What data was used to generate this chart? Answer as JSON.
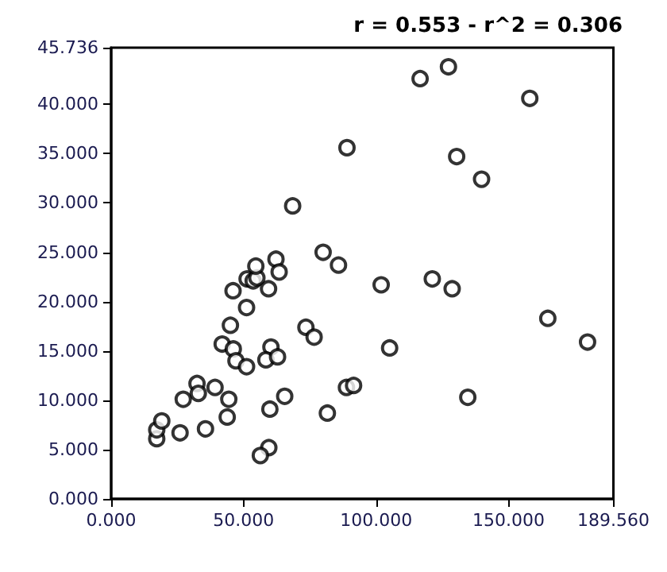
{
  "chart_data": {
    "type": "scatter",
    "annotations": [
      "r = 0.553 - r^2 = 0.306"
    ],
    "x": [
      17.2,
      17.2,
      19.1,
      26.0,
      27.2,
      32.4,
      32.9,
      35.6,
      39.2,
      43.8,
      44.4,
      41.9,
      45.0,
      46.1,
      47.1,
      51.1,
      51.1,
      46.0,
      51.3,
      53.6,
      55.0,
      59.4,
      60.3,
      58.4,
      62.8,
      59.9,
      59.5,
      56.3,
      65.5,
      73.5,
      76.6,
      81.6,
      88.8,
      91.5,
      101.9,
      105.1,
      121.2,
      128.7,
      134.6,
      164.8,
      179.8,
      68.5,
      80.0,
      85.8,
      62.2,
      54.6,
      63.4,
      89.0,
      116.6,
      127.3,
      130.4,
      139.8,
      158.0
    ],
    "values": [
      6.1,
      7.0,
      7.9,
      6.7,
      10.1,
      11.7,
      10.7,
      7.1,
      11.3,
      8.3,
      10.1,
      15.7,
      17.6,
      15.2,
      14.0,
      13.4,
      19.4,
      21.1,
      22.3,
      22.1,
      22.4,
      21.3,
      15.4,
      14.1,
      14.4,
      9.1,
      5.2,
      4.4,
      10.4,
      17.4,
      16.4,
      8.7,
      11.3,
      11.5,
      21.7,
      15.3,
      22.3,
      21.3,
      10.3,
      18.3,
      15.9,
      29.7,
      25.0,
      23.7,
      24.3,
      23.6,
      23.0,
      35.6,
      42.6,
      43.8,
      34.7,
      32.4,
      40.6
    ],
    "color": "#000000",
    "marker": "circle",
    "xlim": [
      0,
      189.56
    ],
    "xticks": [
      {
        "value": 0,
        "label": "0.000"
      },
      {
        "value": 50,
        "label": "50.000"
      },
      {
        "value": 100,
        "label": "100.000"
      },
      {
        "value": 150,
        "label": "150.000"
      },
      {
        "value": 189.56,
        "label": "189.560"
      }
    ],
    "ylim": [
      0,
      45.736
    ],
    "yticks": [
      {
        "value": 0,
        "label": "0.000"
      },
      {
        "value": 5,
        "label": "5.000"
      },
      {
        "value": 10,
        "label": "10.000"
      },
      {
        "value": 15,
        "label": "15.000"
      },
      {
        "value": 20,
        "label": "20.000"
      },
      {
        "value": 25,
        "label": "25.000"
      },
      {
        "value": 30,
        "label": "30.000"
      },
      {
        "value": 35,
        "label": "35.000"
      },
      {
        "value": 40,
        "label": "40.000"
      },
      {
        "value": 45.736,
        "label": "45.736"
      }
    ],
    "grid": false
  }
}
